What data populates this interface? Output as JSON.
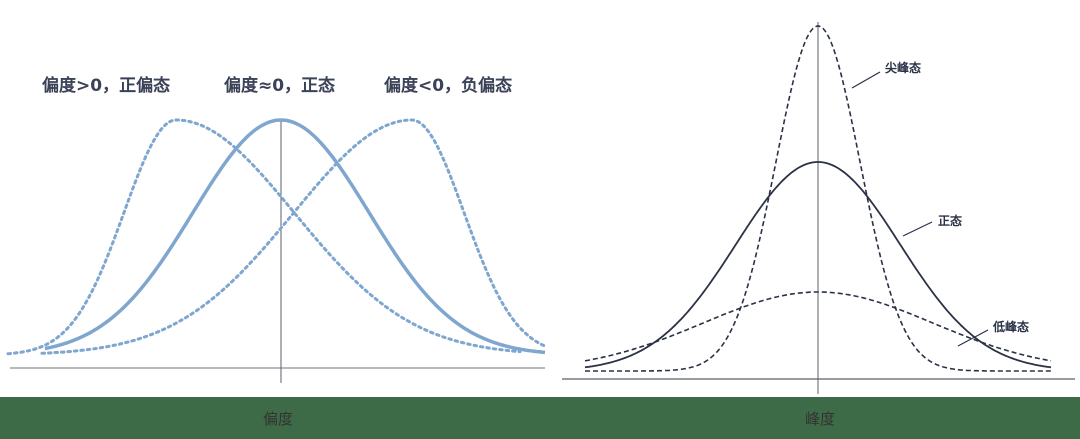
{
  "skewness": {
    "labels": {
      "positive": "偏度>0，正偏态",
      "normal": "偏度≈0，正态",
      "negative": "偏度<0，负偏态"
    },
    "caption": "偏度",
    "color": "#7ea6cf"
  },
  "kurtosis": {
    "labels": {
      "leptokurtic": "尖峰态",
      "normal": "正态",
      "platykurtic": "低峰态"
    },
    "caption": "峰度",
    "color": "#2b3246"
  },
  "footer_color": "#3e6b47"
}
